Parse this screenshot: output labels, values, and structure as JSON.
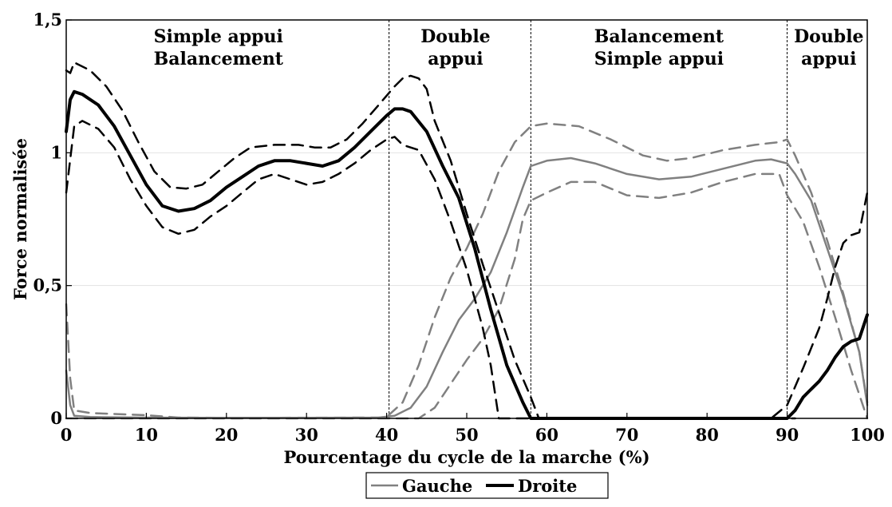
{
  "chart_data": {
    "type": "line",
    "xlabel": "Pourcentage du cycle de la marche (%)",
    "ylabel": "Force normalisée",
    "xlim": [
      0,
      100
    ],
    "ylim": [
      0,
      1.5
    ],
    "xticks": [
      0,
      10,
      20,
      30,
      40,
      50,
      60,
      70,
      80,
      90,
      100
    ],
    "xtick_labels": [
      "0",
      "10",
      "20",
      "30",
      "40",
      "50",
      "60",
      "70",
      "80",
      "90",
      "100"
    ],
    "yticks": [
      0,
      0.5,
      1,
      1.5
    ],
    "ytick_labels": [
      "0",
      "0,5",
      "1",
      "1,5"
    ],
    "grid": true,
    "legend_position": "bottom-center",
    "phase_boundaries": [
      40.3,
      58,
      90,
      100
    ],
    "phase_labels": [
      {
        "x_center": 19,
        "lines": [
          "Simple appui",
          "Balancement"
        ]
      },
      {
        "x_center": 48.6,
        "lines": [
          "Double",
          "appui"
        ]
      },
      {
        "x_center": 74,
        "lines": [
          "Balancement",
          "Simple appui"
        ]
      },
      {
        "x_center": 95.2,
        "lines": [
          "Double",
          "appui"
        ]
      }
    ],
    "legend": [
      {
        "label": "Gauche",
        "color": "#808080"
      },
      {
        "label": "Droite",
        "color": "#000000"
      }
    ],
    "series": [
      {
        "name": "Gauche",
        "role": "mean",
        "color": "#808080",
        "points": [
          [
            0,
            0.18
          ],
          [
            0.5,
            0.05
          ],
          [
            1,
            0.01
          ],
          [
            3,
            0.005
          ],
          [
            10,
            0.003
          ],
          [
            20,
            0.002
          ],
          [
            30,
            0.002
          ],
          [
            39,
            0.003
          ],
          [
            41,
            0.01
          ],
          [
            43,
            0.04
          ],
          [
            45,
            0.12
          ],
          [
            47,
            0.25
          ],
          [
            49,
            0.37
          ],
          [
            51,
            0.45
          ],
          [
            53,
            0.55
          ],
          [
            55,
            0.7
          ],
          [
            57,
            0.87
          ],
          [
            58,
            0.95
          ],
          [
            60,
            0.97
          ],
          [
            63,
            0.98
          ],
          [
            66,
            0.96
          ],
          [
            70,
            0.92
          ],
          [
            74,
            0.9
          ],
          [
            78,
            0.91
          ],
          [
            82,
            0.94
          ],
          [
            86,
            0.97
          ],
          [
            88,
            0.975
          ],
          [
            90,
            0.96
          ],
          [
            91,
            0.92
          ],
          [
            93,
            0.82
          ],
          [
            95,
            0.64
          ],
          [
            97,
            0.46
          ],
          [
            99,
            0.25
          ],
          [
            100,
            0.05
          ]
        ]
      },
      {
        "name": "Gauche",
        "role": "mean+sd",
        "color": "#808080",
        "points": [
          [
            0,
            0.43
          ],
          [
            0.5,
            0.15
          ],
          [
            1,
            0.03
          ],
          [
            3,
            0.02
          ],
          [
            10,
            0.012
          ],
          [
            14,
            0.003
          ],
          [
            20,
            0.002
          ],
          [
            39,
            0.003
          ],
          [
            40,
            0.005
          ],
          [
            42,
            0.06
          ],
          [
            44,
            0.2
          ],
          [
            46,
            0.38
          ],
          [
            48,
            0.53
          ],
          [
            50,
            0.64
          ],
          [
            52,
            0.77
          ],
          [
            54,
            0.93
          ],
          [
            56,
            1.04
          ],
          [
            58,
            1.1
          ],
          [
            60,
            1.11
          ],
          [
            64,
            1.1
          ],
          [
            68,
            1.05
          ],
          [
            72,
            0.99
          ],
          [
            75,
            0.97
          ],
          [
            78,
            0.98
          ],
          [
            82,
            1.01
          ],
          [
            86,
            1.03
          ],
          [
            89,
            1.04
          ],
          [
            90,
            1.05
          ],
          [
            91,
            0.99
          ],
          [
            93,
            0.85
          ],
          [
            95,
            0.67
          ],
          [
            97,
            0.47
          ],
          [
            99,
            0.25
          ],
          [
            100,
            0.06
          ]
        ]
      },
      {
        "name": "Gauche",
        "role": "mean-sd",
        "color": "#808080",
        "points": [
          [
            0,
            0.0
          ],
          [
            40,
            0.0
          ],
          [
            44,
            0.0
          ],
          [
            46,
            0.04
          ],
          [
            48,
            0.13
          ],
          [
            50,
            0.22
          ],
          [
            52,
            0.3
          ],
          [
            54,
            0.41
          ],
          [
            56,
            0.6
          ],
          [
            57,
            0.75
          ],
          [
            58,
            0.82
          ],
          [
            60,
            0.85
          ],
          [
            63,
            0.89
          ],
          [
            66,
            0.89
          ],
          [
            70,
            0.84
          ],
          [
            74,
            0.83
          ],
          [
            78,
            0.85
          ],
          [
            82,
            0.89
          ],
          [
            86,
            0.92
          ],
          [
            89,
            0.92
          ],
          [
            90,
            0.84
          ],
          [
            92,
            0.74
          ],
          [
            94,
            0.57
          ],
          [
            96,
            0.38
          ],
          [
            98,
            0.18
          ],
          [
            100,
            0.0
          ]
        ]
      },
      {
        "name": "Droite",
        "role": "mean",
        "color": "#000000",
        "points": [
          [
            0,
            1.08
          ],
          [
            0.5,
            1.2
          ],
          [
            1,
            1.23
          ],
          [
            2,
            1.22
          ],
          [
            4,
            1.18
          ],
          [
            6,
            1.1
          ],
          [
            8,
            0.99
          ],
          [
            10,
            0.88
          ],
          [
            12,
            0.8
          ],
          [
            14,
            0.78
          ],
          [
            16,
            0.79
          ],
          [
            18,
            0.82
          ],
          [
            20,
            0.87
          ],
          [
            22,
            0.91
          ],
          [
            24,
            0.95
          ],
          [
            26,
            0.97
          ],
          [
            28,
            0.97
          ],
          [
            30,
            0.96
          ],
          [
            32,
            0.95
          ],
          [
            34,
            0.97
          ],
          [
            36,
            1.02
          ],
          [
            38,
            1.08
          ],
          [
            40,
            1.14
          ],
          [
            41,
            1.165
          ],
          [
            42,
            1.165
          ],
          [
            43,
            1.155
          ],
          [
            45,
            1.08
          ],
          [
            47,
            0.95
          ],
          [
            49,
            0.83
          ],
          [
            51,
            0.64
          ],
          [
            53,
            0.41
          ],
          [
            55,
            0.2
          ],
          [
            57,
            0.06
          ],
          [
            58,
            0.0
          ],
          [
            60,
            0.0
          ],
          [
            70,
            0.0
          ],
          [
            80,
            0.0
          ],
          [
            89,
            0.0
          ],
          [
            90,
            0.0
          ],
          [
            91,
            0.03
          ],
          [
            92,
            0.08
          ],
          [
            93,
            0.11
          ],
          [
            94,
            0.14
          ],
          [
            95,
            0.18
          ],
          [
            96,
            0.23
          ],
          [
            97,
            0.27
          ],
          [
            98,
            0.29
          ],
          [
            99,
            0.3
          ],
          [
            100,
            0.39
          ]
        ]
      },
      {
        "name": "Droite",
        "role": "mean+sd",
        "color": "#000000",
        "points": [
          [
            0,
            1.31
          ],
          [
            0.5,
            1.3
          ],
          [
            1,
            1.34
          ],
          [
            3,
            1.31
          ],
          [
            5,
            1.25
          ],
          [
            7,
            1.16
          ],
          [
            9,
            1.04
          ],
          [
            11,
            0.93
          ],
          [
            13,
            0.87
          ],
          [
            15,
            0.865
          ],
          [
            17,
            0.88
          ],
          [
            19,
            0.93
          ],
          [
            21,
            0.98
          ],
          [
            23,
            1.02
          ],
          [
            26,
            1.03
          ],
          [
            29,
            1.03
          ],
          [
            31,
            1.02
          ],
          [
            33,
            1.02
          ],
          [
            35,
            1.05
          ],
          [
            37,
            1.11
          ],
          [
            39,
            1.18
          ],
          [
            41,
            1.25
          ],
          [
            42,
            1.28
          ],
          [
            43,
            1.29
          ],
          [
            44,
            1.28
          ],
          [
            45,
            1.24
          ],
          [
            46,
            1.12
          ],
          [
            48,
            0.97
          ],
          [
            50,
            0.77
          ],
          [
            52,
            0.58
          ],
          [
            54,
            0.4
          ],
          [
            56,
            0.22
          ],
          [
            58,
            0.08
          ],
          [
            59,
            0.0
          ],
          [
            70,
            0.0
          ],
          [
            88,
            0.0
          ],
          [
            90,
            0.05
          ],
          [
            92,
            0.19
          ],
          [
            94,
            0.34
          ],
          [
            95,
            0.45
          ],
          [
            96,
            0.57
          ],
          [
            97,
            0.66
          ],
          [
            98,
            0.69
          ],
          [
            99,
            0.7
          ],
          [
            100,
            0.85
          ]
        ]
      },
      {
        "name": "Droite",
        "role": "mean-sd",
        "color": "#000000",
        "points": [
          [
            0,
            0.85
          ],
          [
            1,
            1.1
          ],
          [
            2,
            1.12
          ],
          [
            4,
            1.09
          ],
          [
            6,
            1.02
          ],
          [
            8,
            0.9
          ],
          [
            10,
            0.8
          ],
          [
            12,
            0.72
          ],
          [
            14,
            0.695
          ],
          [
            16,
            0.71
          ],
          [
            18,
            0.76
          ],
          [
            20,
            0.8
          ],
          [
            22,
            0.85
          ],
          [
            24,
            0.9
          ],
          [
            26,
            0.92
          ],
          [
            28,
            0.9
          ],
          [
            30,
            0.88
          ],
          [
            32,
            0.89
          ],
          [
            34,
            0.92
          ],
          [
            36,
            0.96
          ],
          [
            38,
            1.01
          ],
          [
            40,
            1.05
          ],
          [
            41,
            1.06
          ],
          [
            42,
            1.03
          ],
          [
            44,
            1.01
          ],
          [
            46,
            0.9
          ],
          [
            48,
            0.74
          ],
          [
            50,
            0.56
          ],
          [
            52,
            0.34
          ],
          [
            53,
            0.2
          ],
          [
            54,
            0.0
          ],
          [
            60,
            0.0
          ],
          [
            70,
            0.0
          ],
          [
            89,
            0.0
          ],
          [
            91,
            0.0
          ]
        ]
      }
    ]
  }
}
